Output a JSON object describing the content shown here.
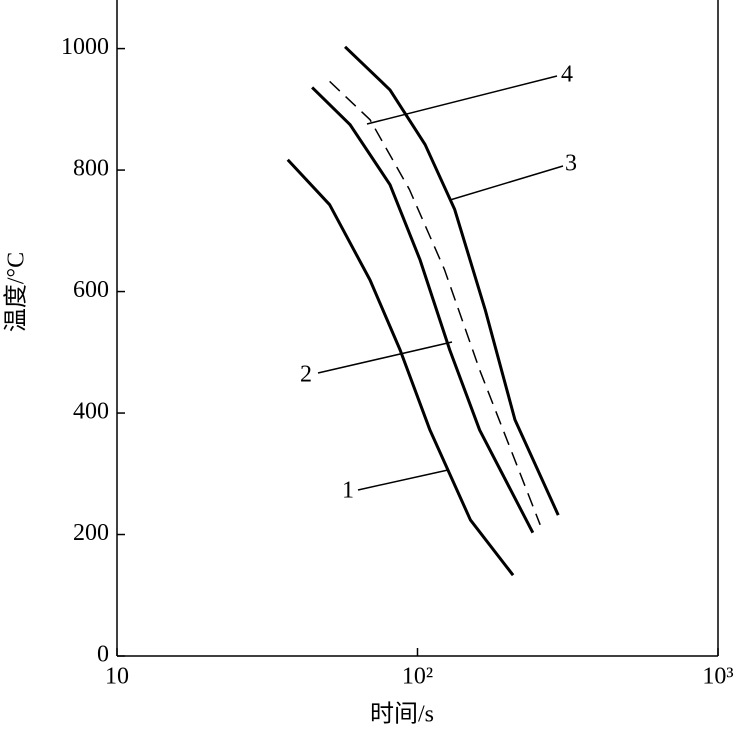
{
  "chart_data": {
    "type": "line",
    "xlabel": "时间/s",
    "ylabel": "温度/°C",
    "xlim": [
      10,
      1000
    ],
    "xscale": "log",
    "xticks": [
      10,
      {
        "value": 100,
        "label": "10²"
      },
      {
        "value": 1000,
        "label": "10³"
      }
    ],
    "ylim": [
      0,
      1080
    ],
    "yticks": [
      0,
      200,
      400,
      600,
      800,
      1000
    ],
    "series": [
      {
        "name": "1",
        "color": "#000000",
        "dash": false,
        "x": [
          37,
          51,
          69.5,
          87.5,
          110,
          150,
          208
        ],
        "values": [
          817,
          743,
          619,
          504,
          372,
          224,
          133
        ]
      },
      {
        "name": "2",
        "color": "#000000",
        "dash": false,
        "x": [
          44.6,
          59.6,
          81,
          102,
          128,
          161,
          242
        ],
        "values": [
          936,
          875,
          776,
          652,
          504,
          372,
          203
        ]
      },
      {
        "name": "3",
        "color": "#000000",
        "dash": false,
        "x": [
          57.4,
          81,
          106,
          133,
          168,
          211,
          294
        ],
        "values": [
          1003,
          932,
          842,
          735,
          570,
          389,
          232
        ]
      },
      {
        "name": "4",
        "color": "#000000",
        "dash": true,
        "x": [
          51,
          69.5,
          94,
          123,
          161,
          256
        ],
        "values": [
          946,
          883,
          768,
          636,
          471,
          216
        ]
      }
    ]
  }
}
